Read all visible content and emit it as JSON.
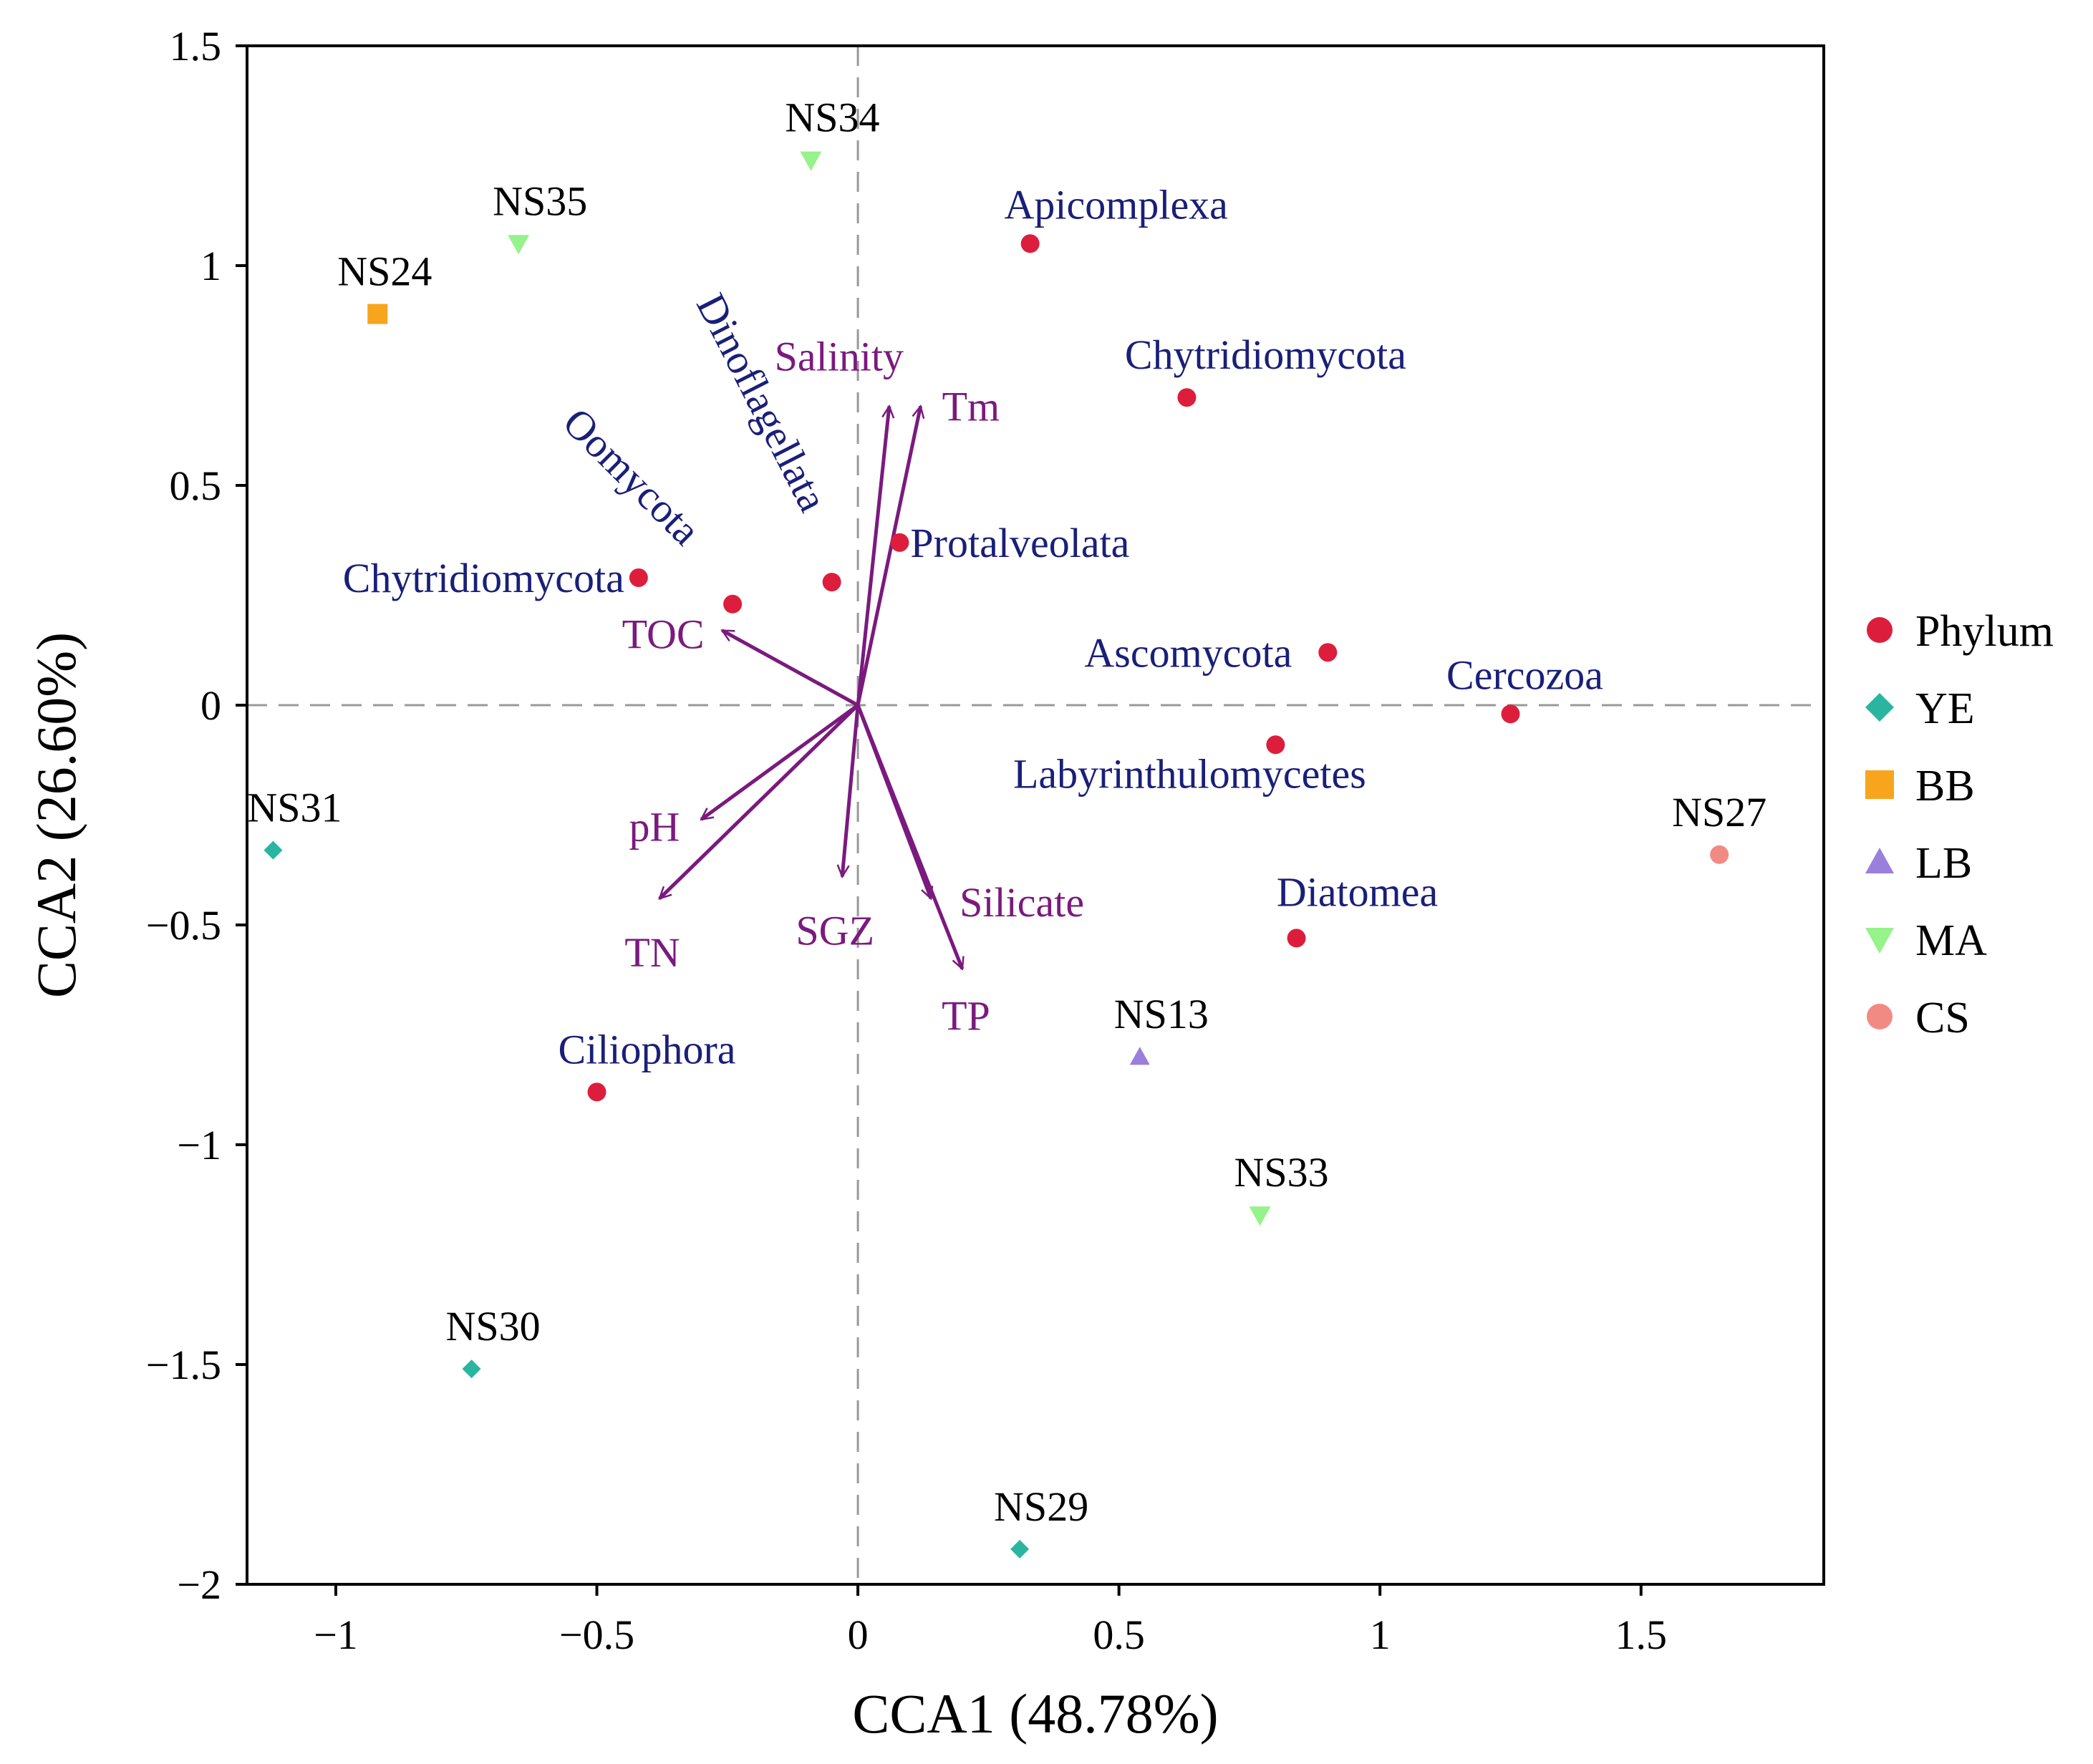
{
  "chart_data": {
    "type": "scatter",
    "xlabel": "CCA1 (48.78%)",
    "ylabel": "CCA2 (26.60%)",
    "xlim": [
      -1.17,
      1.85
    ],
    "ylim": [
      -2.0,
      1.5
    ],
    "xticks": [
      -1,
      -0.5,
      0,
      0.5,
      1,
      1.5
    ],
    "xtick_labels": [
      "−1",
      "−0.5",
      "0",
      "0.5",
      "1",
      "1.5"
    ],
    "yticks": [
      1.5,
      1,
      0.5,
      0,
      -0.5,
      -1,
      -1.5,
      -2
    ],
    "ytick_labels": [
      "1.5",
      "1",
      "0.5",
      "0",
      "−0.5",
      "−1",
      "−1.5",
      "−2"
    ],
    "colors": {
      "Phylum": "#dc1e3c",
      "YE": "#2ab5a0",
      "BB": "#f7a51c",
      "LB": "#9a7fdc",
      "MA": "#96f28a",
      "CS": "#f28a84",
      "arrow": "#7a1a7e",
      "phylum_text": "#1a1f78",
      "sample_text": "#000000"
    },
    "phyla": [
      {
        "name": "Apicomplexa",
        "x": 0.33,
        "y": 1.05
      },
      {
        "name": "Chytridiomycota",
        "x": 0.63,
        "y": 0.7
      },
      {
        "name": "Protalveolata",
        "x": 0.08,
        "y": 0.37
      },
      {
        "name": "Dinoflagellata",
        "x": -0.05,
        "y": 0.28
      },
      {
        "name": "Oomycota",
        "x": -0.24,
        "y": 0.23
      },
      {
        "name": "Chytridiomycota",
        "x": -0.42,
        "y": 0.29
      },
      {
        "name": "Ascomycota",
        "x": 0.9,
        "y": 0.12
      },
      {
        "name": "Cercozoa",
        "x": 1.25,
        "y": -0.02
      },
      {
        "name": "Labyrinthulomycetes",
        "x": 0.8,
        "y": -0.09
      },
      {
        "name": "Diatomea",
        "x": 0.84,
        "y": -0.53
      },
      {
        "name": "Ciliophora",
        "x": -0.5,
        "y": -0.88
      }
    ],
    "samples": [
      {
        "name": "NS34",
        "group": "MA",
        "x": -0.09,
        "y": 1.24
      },
      {
        "name": "NS35",
        "group": "MA",
        "x": -0.65,
        "y": 1.05
      },
      {
        "name": "NS24",
        "group": "BB",
        "x": -0.92,
        "y": 0.89
      },
      {
        "name": "NS31",
        "group": "YE",
        "x": -1.12,
        "y": -0.33
      },
      {
        "name": "NS30",
        "group": "YE",
        "x": -0.74,
        "y": -1.51
      },
      {
        "name": "NS29",
        "group": "YE",
        "x": 0.31,
        "y": -1.92
      },
      {
        "name": "NS13",
        "group": "LB",
        "x": 0.54,
        "y": -0.8
      },
      {
        "name": "NS33",
        "group": "MA",
        "x": 0.77,
        "y": -1.16
      },
      {
        "name": "NS27",
        "group": "CS",
        "x": 1.65,
        "y": -0.34
      }
    ],
    "vectors": [
      {
        "name": "Salinity",
        "x": 0.06,
        "y": 0.68
      },
      {
        "name": "Tm",
        "x": 0.12,
        "y": 0.68
      },
      {
        "name": "TOC",
        "x": -0.26,
        "y": 0.17
      },
      {
        "name": "pH",
        "x": -0.3,
        "y": -0.26
      },
      {
        "name": "TN",
        "x": -0.38,
        "y": -0.44
      },
      {
        "name": "SGZ",
        "x": -0.03,
        "y": -0.39
      },
      {
        "name": "Silicate",
        "x": 0.14,
        "y": -0.44
      },
      {
        "name": "TP",
        "x": 0.2,
        "y": -0.6
      }
    ],
    "legend": {
      "position": "right",
      "entries": [
        {
          "label": "Phylum",
          "shape": "circle"
        },
        {
          "label": "YE",
          "shape": "diamond"
        },
        {
          "label": "BB",
          "shape": "square"
        },
        {
          "label": "LB",
          "shape": "triangle-up"
        },
        {
          "label": "MA",
          "shape": "triangle-down"
        },
        {
          "label": "CS",
          "shape": "circle"
        }
      ]
    }
  }
}
